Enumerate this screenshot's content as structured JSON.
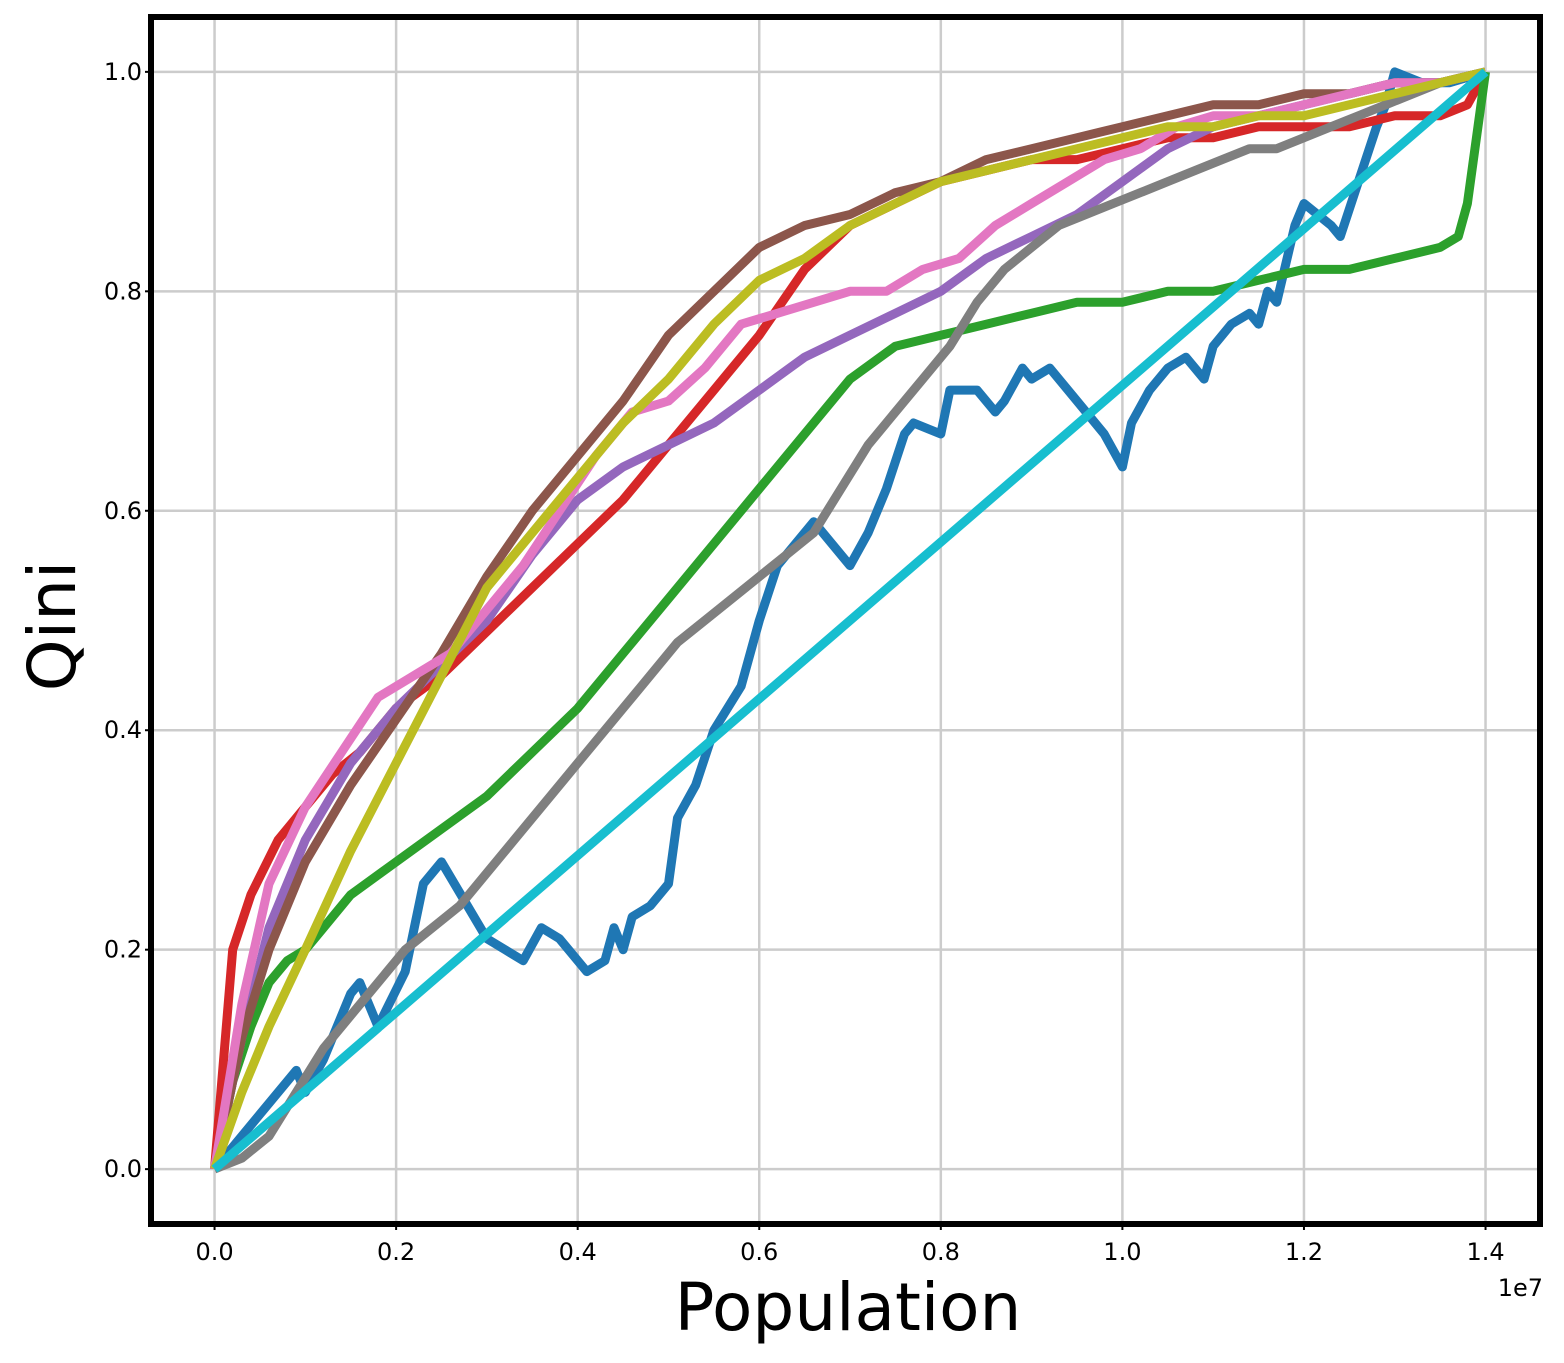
{
  "chart_data": {
    "type": "line",
    "title": "",
    "xlabel": "Population",
    "ylabel": "Qini",
    "x_offset_text": "1e7",
    "xlim": [
      -0.07,
      1.46
    ],
    "ylim": [
      -0.05,
      1.05
    ],
    "x_ticks": [
      0.0,
      0.2,
      0.4,
      0.6,
      0.8,
      1.0,
      1.2,
      1.4
    ],
    "x_tick_labels": [
      "0.0",
      "0.2",
      "0.4",
      "0.6",
      "0.8",
      "1.0",
      "1.2",
      "1.4"
    ],
    "y_ticks": [
      0.0,
      0.2,
      0.4,
      0.6,
      0.8,
      1.0
    ],
    "y_tick_labels": [
      "0.0",
      "0.2",
      "0.4",
      "0.6",
      "0.8",
      "1.0"
    ],
    "grid": true,
    "series": [
      {
        "color": "#1f77b4",
        "x": [
          0.0,
          0.05,
          0.09,
          0.1,
          0.12,
          0.15,
          0.16,
          0.18,
          0.21,
          0.23,
          0.25,
          0.3,
          0.32,
          0.34,
          0.36,
          0.38,
          0.41,
          0.43,
          0.44,
          0.45,
          0.46,
          0.48,
          0.5,
          0.51,
          0.53,
          0.55,
          0.58,
          0.6,
          0.62,
          0.65,
          0.66,
          0.68,
          0.7,
          0.72,
          0.74,
          0.76,
          0.77,
          0.8,
          0.81,
          0.83,
          0.84,
          0.86,
          0.87,
          0.89,
          0.9,
          0.92,
          0.95,
          0.98,
          1.0,
          1.01,
          1.03,
          1.05,
          1.07,
          1.09,
          1.1,
          1.12,
          1.14,
          1.15,
          1.16,
          1.17,
          1.19,
          1.2,
          1.23,
          1.24,
          1.26,
          1.28,
          1.29,
          1.3,
          1.33,
          1.36,
          1.4
        ],
        "y": [
          0.0,
          0.05,
          0.09,
          0.07,
          0.1,
          0.16,
          0.17,
          0.13,
          0.18,
          0.26,
          0.28,
          0.21,
          0.2,
          0.19,
          0.22,
          0.21,
          0.18,
          0.19,
          0.22,
          0.2,
          0.23,
          0.24,
          0.26,
          0.32,
          0.35,
          0.4,
          0.44,
          0.5,
          0.55,
          0.58,
          0.59,
          0.57,
          0.55,
          0.58,
          0.62,
          0.67,
          0.68,
          0.67,
          0.71,
          0.71,
          0.71,
          0.69,
          0.7,
          0.73,
          0.72,
          0.73,
          0.7,
          0.67,
          0.64,
          0.68,
          0.71,
          0.73,
          0.74,
          0.72,
          0.75,
          0.77,
          0.78,
          0.77,
          0.8,
          0.79,
          0.86,
          0.88,
          0.86,
          0.85,
          0.9,
          0.95,
          0.97,
          1.0,
          0.99,
          0.99,
          1.0
        ]
      },
      {
        "color": "#d62728",
        "x": [
          0.0,
          0.02,
          0.04,
          0.07,
          0.1,
          0.13,
          0.16,
          0.2,
          0.25,
          0.3,
          0.35,
          0.4,
          0.45,
          0.5,
          0.55,
          0.6,
          0.65,
          0.7,
          0.75,
          0.8,
          0.85,
          0.9,
          0.95,
          1.0,
          1.05,
          1.1,
          1.15,
          1.2,
          1.25,
          1.3,
          1.35,
          1.38,
          1.4
        ],
        "y": [
          0.0,
          0.2,
          0.25,
          0.3,
          0.33,
          0.36,
          0.38,
          0.42,
          0.45,
          0.49,
          0.53,
          0.57,
          0.61,
          0.66,
          0.71,
          0.76,
          0.82,
          0.86,
          0.88,
          0.9,
          0.91,
          0.92,
          0.92,
          0.93,
          0.94,
          0.94,
          0.95,
          0.95,
          0.95,
          0.96,
          0.96,
          0.97,
          1.0
        ]
      },
      {
        "color": "#2ca02c",
        "x": [
          0.0,
          0.02,
          0.04,
          0.06,
          0.08,
          0.1,
          0.12,
          0.15,
          0.2,
          0.25,
          0.3,
          0.35,
          0.4,
          0.45,
          0.5,
          0.55,
          0.6,
          0.65,
          0.7,
          0.75,
          0.8,
          0.85,
          0.9,
          0.95,
          1.0,
          1.05,
          1.1,
          1.15,
          1.2,
          1.25,
          1.3,
          1.35,
          1.37,
          1.38,
          1.4
        ],
        "y": [
          0.0,
          0.08,
          0.13,
          0.17,
          0.19,
          0.2,
          0.22,
          0.25,
          0.28,
          0.31,
          0.34,
          0.38,
          0.42,
          0.47,
          0.52,
          0.57,
          0.62,
          0.67,
          0.72,
          0.75,
          0.76,
          0.77,
          0.78,
          0.79,
          0.79,
          0.8,
          0.8,
          0.81,
          0.82,
          0.82,
          0.83,
          0.84,
          0.85,
          0.88,
          1.0
        ]
      },
      {
        "color": "#9467bd",
        "x": [
          0.0,
          0.03,
          0.06,
          0.1,
          0.15,
          0.2,
          0.25,
          0.3,
          0.35,
          0.4,
          0.45,
          0.5,
          0.55,
          0.6,
          0.65,
          0.7,
          0.75,
          0.8,
          0.85,
          0.9,
          0.95,
          1.0,
          1.05,
          1.1,
          1.15,
          1.2,
          1.25,
          1.3,
          1.35,
          1.4
        ],
        "y": [
          0.0,
          0.12,
          0.22,
          0.3,
          0.37,
          0.42,
          0.46,
          0.5,
          0.56,
          0.61,
          0.64,
          0.66,
          0.68,
          0.71,
          0.74,
          0.76,
          0.78,
          0.8,
          0.83,
          0.85,
          0.87,
          0.9,
          0.93,
          0.95,
          0.96,
          0.97,
          0.98,
          0.99,
          0.99,
          1.0
        ]
      },
      {
        "color": "#8c564b",
        "x": [
          0.0,
          0.03,
          0.06,
          0.1,
          0.15,
          0.2,
          0.25,
          0.3,
          0.35,
          0.4,
          0.45,
          0.5,
          0.55,
          0.6,
          0.65,
          0.7,
          0.75,
          0.8,
          0.85,
          0.9,
          0.95,
          1.0,
          1.05,
          1.1,
          1.15,
          1.2,
          1.25,
          1.3,
          1.35,
          1.4
        ],
        "y": [
          0.0,
          0.12,
          0.2,
          0.28,
          0.35,
          0.41,
          0.47,
          0.54,
          0.6,
          0.65,
          0.7,
          0.76,
          0.8,
          0.84,
          0.86,
          0.87,
          0.89,
          0.9,
          0.92,
          0.93,
          0.94,
          0.95,
          0.96,
          0.97,
          0.97,
          0.98,
          0.98,
          0.99,
          0.99,
          1.0
        ]
      },
      {
        "color": "#e377c2",
        "x": [
          0.0,
          0.03,
          0.06,
          0.1,
          0.14,
          0.18,
          0.22,
          0.26,
          0.3,
          0.34,
          0.38,
          0.42,
          0.46,
          0.5,
          0.54,
          0.58,
          0.62,
          0.66,
          0.7,
          0.74,
          0.78,
          0.82,
          0.86,
          0.9,
          0.94,
          0.98,
          1.02,
          1.06,
          1.1,
          1.15,
          1.2,
          1.25,
          1.3,
          1.35,
          1.4
        ],
        "y": [
          0.0,
          0.15,
          0.26,
          0.33,
          0.38,
          0.43,
          0.45,
          0.47,
          0.51,
          0.55,
          0.6,
          0.65,
          0.69,
          0.7,
          0.73,
          0.77,
          0.78,
          0.79,
          0.8,
          0.8,
          0.82,
          0.83,
          0.86,
          0.88,
          0.9,
          0.92,
          0.93,
          0.95,
          0.96,
          0.96,
          0.97,
          0.98,
          0.99,
          0.99,
          1.0
        ]
      },
      {
        "color": "#7f7f7f",
        "x": [
          0.0,
          0.03,
          0.06,
          0.09,
          0.12,
          0.15,
          0.18,
          0.21,
          0.24,
          0.27,
          0.3,
          0.33,
          0.36,
          0.39,
          0.42,
          0.45,
          0.48,
          0.51,
          0.54,
          0.57,
          0.6,
          0.63,
          0.66,
          0.69,
          0.72,
          0.75,
          0.78,
          0.81,
          0.84,
          0.87,
          0.9,
          0.93,
          0.96,
          0.99,
          1.02,
          1.05,
          1.08,
          1.11,
          1.14,
          1.17,
          1.2,
          1.23,
          1.26,
          1.29,
          1.32,
          1.35,
          1.4
        ],
        "y": [
          0.0,
          0.01,
          0.03,
          0.07,
          0.11,
          0.14,
          0.17,
          0.2,
          0.22,
          0.24,
          0.27,
          0.3,
          0.33,
          0.36,
          0.39,
          0.42,
          0.45,
          0.48,
          0.5,
          0.52,
          0.54,
          0.56,
          0.58,
          0.62,
          0.66,
          0.69,
          0.72,
          0.75,
          0.79,
          0.82,
          0.84,
          0.86,
          0.87,
          0.88,
          0.89,
          0.9,
          0.91,
          0.92,
          0.93,
          0.93,
          0.94,
          0.95,
          0.96,
          0.97,
          0.98,
          0.99,
          1.0
        ]
      },
      {
        "color": "#bcbd22",
        "x": [
          0.0,
          0.03,
          0.06,
          0.1,
          0.15,
          0.2,
          0.25,
          0.3,
          0.35,
          0.4,
          0.45,
          0.5,
          0.55,
          0.6,
          0.65,
          0.7,
          0.75,
          0.8,
          0.85,
          0.9,
          0.95,
          1.0,
          1.05,
          1.1,
          1.15,
          1.2,
          1.25,
          1.3,
          1.35,
          1.4
        ],
        "y": [
          0.0,
          0.07,
          0.13,
          0.2,
          0.29,
          0.37,
          0.45,
          0.53,
          0.58,
          0.63,
          0.68,
          0.72,
          0.77,
          0.81,
          0.83,
          0.86,
          0.88,
          0.9,
          0.91,
          0.92,
          0.93,
          0.94,
          0.95,
          0.95,
          0.96,
          0.96,
          0.97,
          0.98,
          0.99,
          1.0
        ]
      },
      {
        "color": "#17becf",
        "x": [
          0.0,
          1.4
        ],
        "y": [
          0.0,
          1.0
        ]
      }
    ]
  }
}
